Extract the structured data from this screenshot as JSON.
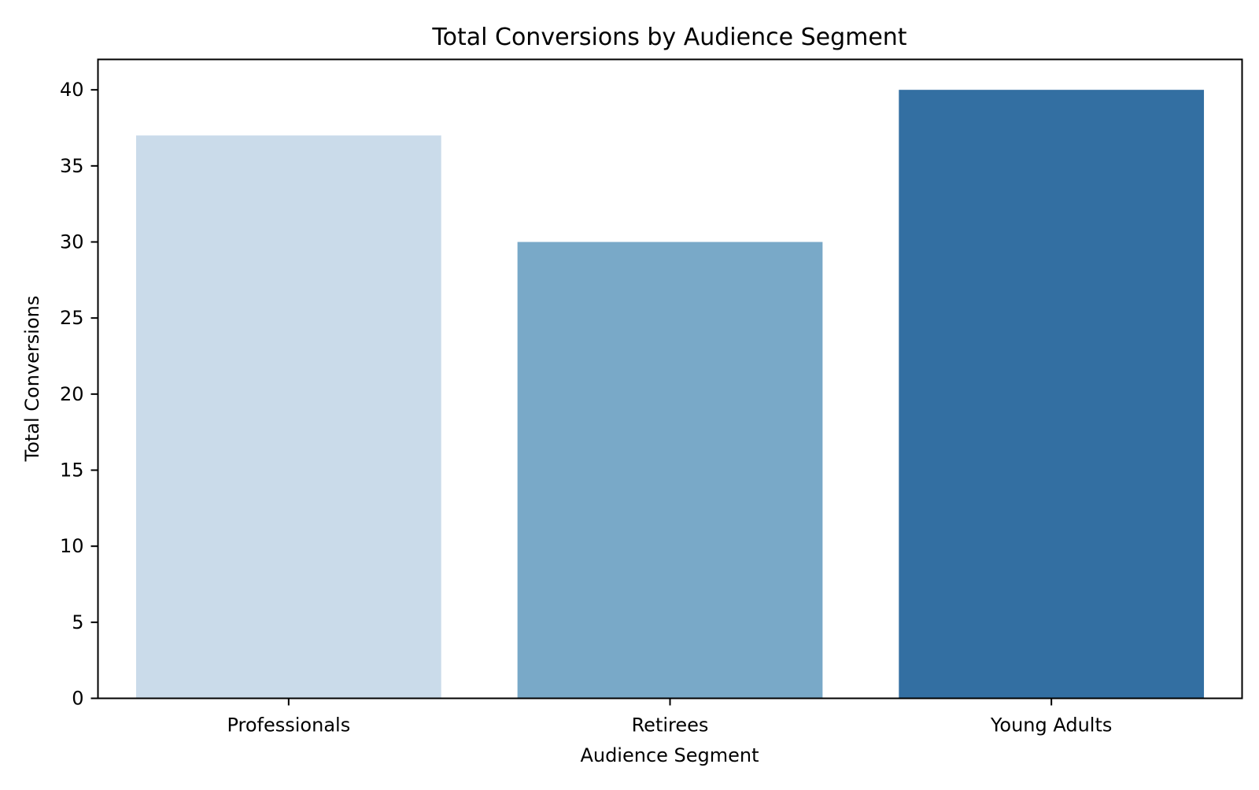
{
  "chart_data": {
    "type": "bar",
    "title": "Total Conversions by Audience Segment",
    "xlabel": "Audience Segment",
    "ylabel": "Total Conversions",
    "categories": [
      "Professionals",
      "Retirees",
      "Young Adults"
    ],
    "values": [
      37,
      30,
      40
    ],
    "colors": [
      "#cadbea",
      "#79a9c8",
      "#336fa2"
    ],
    "ylim": [
      0,
      42
    ],
    "yticks": [
      0,
      5,
      10,
      15,
      20,
      25,
      30,
      35,
      40
    ],
    "grid": false,
    "legend": "none"
  }
}
